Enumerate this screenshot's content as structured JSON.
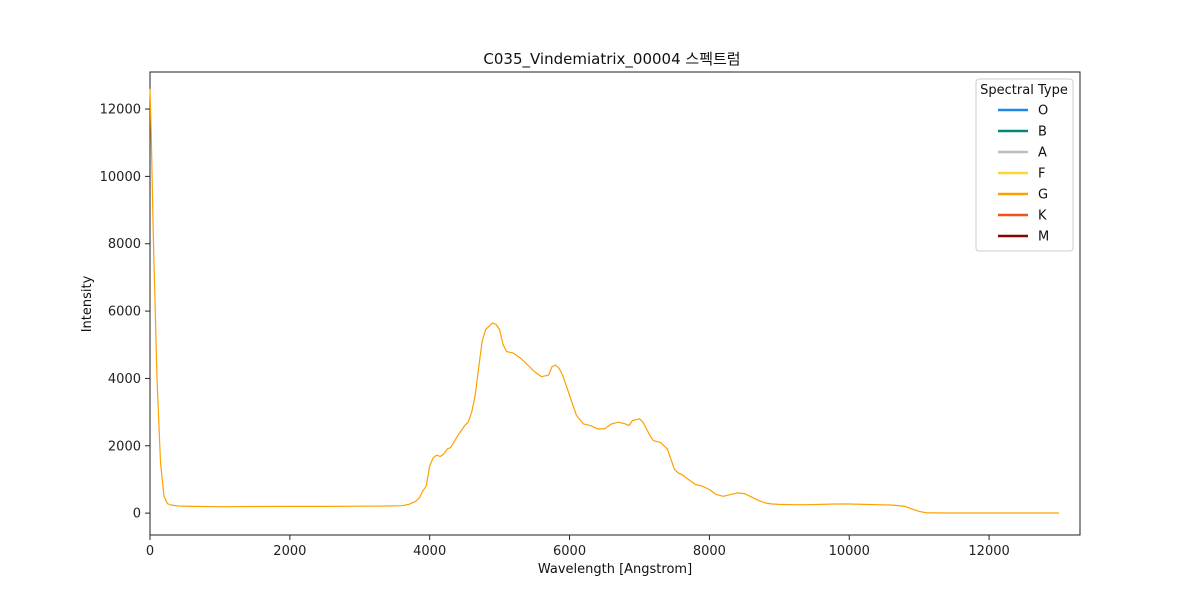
{
  "chart_data": {
    "type": "line",
    "title": "C035_Vindemiatrix_00004 스펙트럼",
    "xlabel": "Wavelength [Angstrom]",
    "ylabel": "Intensity",
    "xlim": [
      0,
      13300
    ],
    "ylim": [
      -650,
      13100
    ],
    "xticks": [
      0,
      2000,
      4000,
      6000,
      8000,
      10000,
      12000
    ],
    "yticks": [
      0,
      2000,
      4000,
      6000,
      8000,
      10000,
      12000
    ],
    "grid": false,
    "legend": {
      "title": "Spectral Type",
      "placement": "top-right",
      "entries": [
        {
          "name": "O",
          "color": "#1e88e5"
        },
        {
          "name": "B",
          "color": "#00897b"
        },
        {
          "name": "A",
          "color": "#bdbdbd"
        },
        {
          "name": "F",
          "color": "#fdd835"
        },
        {
          "name": "G",
          "color": "#ffa000"
        },
        {
          "name": "K",
          "color": "#f4511e"
        },
        {
          "name": "M",
          "color": "#8b0000"
        }
      ]
    },
    "series": [
      {
        "color": "#ffa000",
        "x": [
          0,
          20,
          50,
          100,
          150,
          200,
          250,
          300,
          400,
          600,
          1000,
          1500,
          2000,
          2500,
          3000,
          3400,
          3600,
          3700,
          3800,
          3850,
          3900,
          3950,
          4000,
          4050,
          4100,
          4150,
          4200,
          4250,
          4300,
          4400,
          4500,
          4550,
          4600,
          4650,
          4700,
          4750,
          4800,
          4850,
          4900,
          4950,
          5000,
          5050,
          5100,
          5200,
          5300,
          5400,
          5500,
          5600,
          5700,
          5750,
          5800,
          5850,
          5900,
          5950,
          6000,
          6100,
          6200,
          6300,
          6400,
          6500,
          6600,
          6700,
          6800,
          6850,
          6900,
          7000,
          7050,
          7100,
          7150,
          7200,
          7300,
          7400,
          7500,
          7550,
          7600,
          7700,
          7800,
          7900,
          8000,
          8100,
          8200,
          8300,
          8400,
          8500,
          8600,
          8700,
          8800,
          8900,
          9000,
          9200,
          9400,
          9600,
          9800,
          10000,
          10200,
          10400,
          10600,
          10800,
          10900,
          11000,
          11100,
          11200,
          11400,
          11800,
          12200,
          12600,
          13000
        ],
        "y": [
          12600,
          11000,
          8000,
          4000,
          1500,
          500,
          280,
          240,
          210,
          200,
          190,
          195,
          200,
          200,
          205,
          210,
          220,
          260,
          350,
          450,
          650,
          800,
          1400,
          1650,
          1720,
          1680,
          1750,
          1900,
          1950,
          2300,
          2600,
          2700,
          3000,
          3500,
          4300,
          5100,
          5450,
          5550,
          5650,
          5600,
          5450,
          5000,
          4800,
          4750,
          4600,
          4400,
          4200,
          4050,
          4100,
          4350,
          4400,
          4300,
          4100,
          3800,
          3500,
          2900,
          2650,
          2600,
          2500,
          2500,
          2650,
          2700,
          2650,
          2600,
          2750,
          2800,
          2700,
          2500,
          2300,
          2150,
          2100,
          1900,
          1300,
          1200,
          1150,
          1000,
          850,
          800,
          700,
          550,
          500,
          550,
          600,
          580,
          480,
          380,
          300,
          270,
          260,
          250,
          250,
          260,
          270,
          270,
          260,
          250,
          240,
          200,
          120,
          50,
          10,
          5,
          3,
          3,
          3,
          3,
          3
        ]
      }
    ]
  }
}
